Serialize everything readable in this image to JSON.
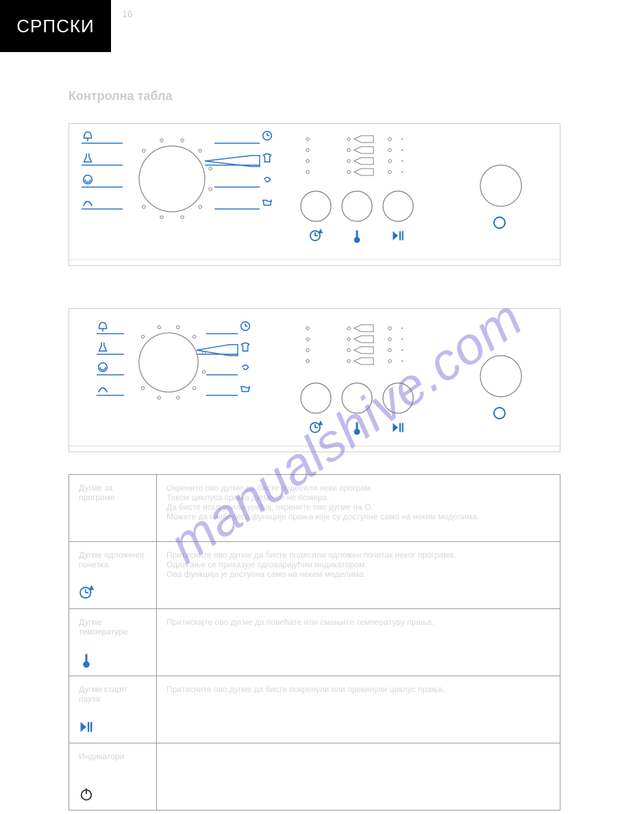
{
  "header": {
    "language": "СРПСКИ"
  },
  "page_number": "16",
  "watermark_text": "manualshive.com",
  "section_title": "Контролна табла",
  "panel": {
    "icon_color": "#2b73c4",
    "line_color": "#808080",
    "font_family": "sans-serif",
    "left_icons": [
      "tree",
      "flask",
      "spiral",
      "arch"
    ],
    "right_icons": [
      "clock",
      "shirt",
      "swirl",
      "tub"
    ],
    "bottom_icons": [
      "delay",
      "thermo",
      "startpause"
    ],
    "dial_margins_count": 10,
    "indicator_rows": 4,
    "indicator_groups": 3,
    "right_button_color": "#2b73c4",
    "dial_radius": 48,
    "small_btn_radius": 22,
    "big_btn_radius": 30,
    "label_color": "#cccccc"
  },
  "table": {
    "rows": [
      {
        "icon": null,
        "col1": "Дугме за програме",
        "col2": "Окрените ово дугме да бисте подесили неки програм.\nТоком циклуса прања дугме се не помера.\nДа бисте искључили уређај, окрените ово дугме на O.\nМожете да изаберете функције прања које су доступне само на неким моделима."
      },
      {
        "icon": "delay",
        "col1": "Дугме одложеног почетка",
        "col2": "Притисните ово дугме да бисте подесили одложен почетак неког програма.\nОдлагање се приказује одговарајућим индикатором.\nОва функција је доступна само на неким моделима."
      },
      {
        "icon": "thermo",
        "col1": "Дугме температуре",
        "col2": "Притискајте ово дугме да повећате или смањите температуру прања."
      },
      {
        "icon": "startpause",
        "col1": "Дугме старт/пауза",
        "col2": "Притисните ово дугме да бисте покренули или прекинули циклус прања."
      },
      {
        "icon": "power",
        "col1": "Индикатори",
        "col2": ""
      }
    ]
  }
}
